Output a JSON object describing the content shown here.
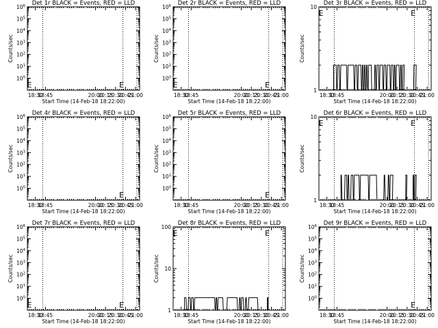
{
  "app_title": "",
  "colors": {
    "background": "#ffffff",
    "axes": "#000000",
    "events": "#000000",
    "lld": "#ff0000"
  },
  "chart_data": [
    {
      "type": "line",
      "title": "Det 1r BLACK = Events, RED = LLD",
      "xlabel": "Start Time (14-Feb-18 18:22:00)",
      "ylabel": "Counts/sec",
      "xlim": [
        "18:18",
        "21:06"
      ],
      "x_ticks": [
        "18:30",
        "18:45",
        "20:00",
        "20:15",
        "20:30",
        "20:45",
        "21:00"
      ],
      "yscale": "log",
      "ylim": [
        0.1,
        1000000
      ],
      "y_ticks": [
        "10^0",
        "10^1",
        "10^2",
        "10^3",
        "10^4",
        "10^5",
        "10^6"
      ],
      "dotted_lines_at": [
        "18:41",
        "20:41",
        "21:02"
      ],
      "e_markers_at": [
        "18:21",
        "20:39"
      ],
      "series": []
    },
    {
      "type": "line",
      "title": "Det 2r BLACK = Events, RED = LLD",
      "xlabel": "Start Time (14-Feb-18 18:22:00)",
      "ylabel": "Counts/sec",
      "xlim": [
        "18:18",
        "21:06"
      ],
      "x_ticks": [
        "18:30",
        "18:45",
        "20:00",
        "20:15",
        "20:30",
        "20:45",
        "21:00"
      ],
      "yscale": "log",
      "ylim": [
        0.1,
        1000000
      ],
      "y_ticks": [
        "10^0",
        "10^1",
        "10^2",
        "10^3",
        "10^4",
        "10^5",
        "10^6"
      ],
      "dotted_lines_at": [
        "18:41",
        "20:41",
        "21:02"
      ],
      "e_markers_at": [
        "18:21",
        "20:39"
      ],
      "series": []
    },
    {
      "type": "line",
      "title": "Det 3r BLACK = Events, RED = LLD",
      "xlabel": "Start Time (14-Feb-18 18:22:00)",
      "ylabel": "Counts/sec",
      "xlim": [
        "18:18",
        "21:06"
      ],
      "x_ticks": [
        "18:30",
        "18:45",
        "20:00",
        "20:15",
        "20:30",
        "20:45",
        "21:00"
      ],
      "yscale": "log",
      "ylim": [
        1,
        10
      ],
      "y_ticks": [
        "1",
        "10"
      ],
      "dotted_lines_at": [
        "18:41",
        "20:41",
        "21:02"
      ],
      "e_markers_at": [
        "18:21",
        "20:39"
      ],
      "series": [
        {
          "segments": [
            {
              "from": "18:40",
              "to": "20:25",
              "value": 2
            },
            {
              "from": "20:39",
              "to": "20:43",
              "value": 2
            }
          ]
        }
      ]
    },
    {
      "type": "line",
      "title": "Det 4r BLACK = Events, RED = LLD",
      "xlabel": "Start Time (14-Feb-18 18:22:00)",
      "ylabel": "Counts/sec",
      "xlim": [
        "18:18",
        "21:06"
      ],
      "x_ticks": [
        "18:30",
        "18:45",
        "20:00",
        "20:15",
        "20:30",
        "20:45",
        "21:00"
      ],
      "yscale": "log",
      "ylim": [
        0.1,
        1000000
      ],
      "y_ticks": [
        "10^0",
        "10^1",
        "10^2",
        "10^3",
        "10^4",
        "10^5",
        "10^6"
      ],
      "dotted_lines_at": [
        "18:41",
        "20:41",
        "21:02"
      ],
      "e_markers_at": [
        "20:39"
      ],
      "series": []
    },
    {
      "type": "line",
      "title": "Det 5r BLACK = Events, RED = LLD",
      "xlabel": "Start Time (14-Feb-18 18:22:00)",
      "ylabel": "Counts/sec",
      "xlim": [
        "18:18",
        "21:06"
      ],
      "x_ticks": [
        "18:30",
        "18:45",
        "20:00",
        "20:15",
        "20:30",
        "20:45",
        "21:00"
      ],
      "yscale": "log",
      "ylim": [
        0.1,
        1000000
      ],
      "y_ticks": [
        "10^0",
        "10^1",
        "10^2",
        "10^3",
        "10^4",
        "10^5",
        "10^6"
      ],
      "dotted_lines_at": [
        "18:41",
        "20:41",
        "21:02"
      ],
      "e_markers_at": [
        "20:39"
      ],
      "series": []
    },
    {
      "type": "line",
      "title": "Det 6r BLACK = Events, RED = LLD",
      "xlabel": "Start Time (14-Feb-18 18:22:00)",
      "ylabel": "Counts/sec",
      "xlim": [
        "18:18",
        "21:06"
      ],
      "x_ticks": [
        "18:30",
        "18:45",
        "20:00",
        "20:15",
        "20:30",
        "20:45",
        "21:00"
      ],
      "yscale": "log",
      "ylim": [
        1,
        10
      ],
      "y_ticks": [
        "1",
        "10"
      ],
      "dotted_lines_at": [
        "18:41",
        "20:41",
        "21:02"
      ],
      "e_markers_at": [
        "18:21",
        "20:39"
      ],
      "series": [
        {
          "segments": [
            {
              "from": "18:51",
              "to": "20:08",
              "value": 2
            },
            {
              "from": "20:28",
              "to": "20:29",
              "value": 2
            },
            {
              "from": "20:39",
              "to": "20:43",
              "value": 2
            }
          ]
        }
      ]
    },
    {
      "type": "line",
      "title": "Det 7r BLACK = Events, RED = LLD",
      "xlabel": "Start Time (14-Feb-18 18:22:00)",
      "ylabel": "Counts/sec",
      "xlim": [
        "18:18",
        "21:06"
      ],
      "x_ticks": [
        "18:30",
        "18:45",
        "20:00",
        "20:15",
        "20:30",
        "20:45",
        "21:00"
      ],
      "yscale": "log",
      "ylim": [
        0.1,
        1000000
      ],
      "y_ticks": [
        "10^0",
        "10^1",
        "10^2",
        "10^3",
        "10^4",
        "10^5",
        "10^6"
      ],
      "dotted_lines_at": [
        "18:41",
        "20:41",
        "21:02"
      ],
      "e_markers_at": [
        "18:21",
        "20:39"
      ],
      "series": []
    },
    {
      "type": "line",
      "title": "Det 8r BLACK = Events, RED = LLD",
      "xlabel": "Start Time (14-Feb-18 18:22:00)",
      "ylabel": "Counts/sec",
      "xlim": [
        "18:18",
        "21:06"
      ],
      "x_ticks": [
        "18:30",
        "18:45",
        "20:00",
        "20:15",
        "20:30",
        "20:45",
        "21:00"
      ],
      "yscale": "log",
      "ylim": [
        1,
        100
      ],
      "y_ticks": [
        "1",
        "10",
        "100"
      ],
      "dotted_lines_at": [
        "18:41",
        "20:41",
        "21:02"
      ],
      "e_markers_at": [
        "18:21",
        "20:39"
      ],
      "series": [
        {
          "segments": [
            {
              "from": "18:35",
              "to": "20:25",
              "value": 2
            },
            {
              "from": "20:39",
              "to": "20:40",
              "value": 2
            }
          ]
        }
      ]
    },
    {
      "type": "line",
      "title": "Det 9r BLACK = Events, RED = LLD",
      "xlabel": "Start Time (14-Feb-18 18:22:00)",
      "ylabel": "Counts/sec",
      "xlim": [
        "18:18",
        "21:06"
      ],
      "x_ticks": [
        "18:30",
        "18:45",
        "20:00",
        "20:15",
        "20:30",
        "20:45",
        "21:00"
      ],
      "yscale": "log",
      "ylim": [
        0.1,
        1000000
      ],
      "y_ticks": [
        "10^0",
        "10^1",
        "10^2",
        "10^3",
        "10^4",
        "10^5",
        "10^6"
      ],
      "dotted_lines_at": [
        "18:41",
        "20:41",
        "21:02"
      ],
      "e_markers_at": [
        "20:39"
      ],
      "series": []
    }
  ]
}
